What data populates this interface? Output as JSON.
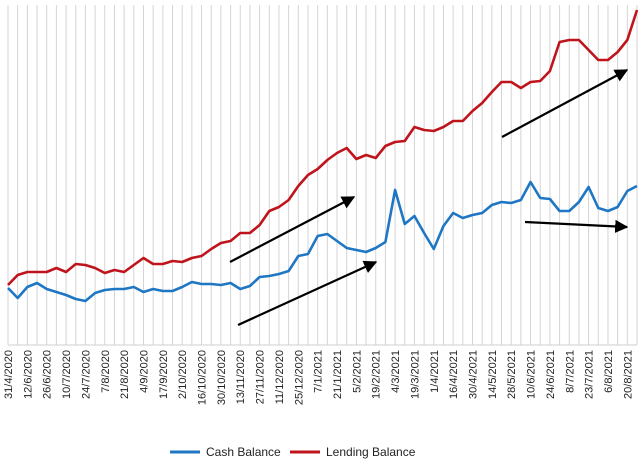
{
  "chart_data": {
    "type": "line",
    "categories": [
      "31/4/2020",
      null,
      "12/6/2020",
      null,
      "26/6/2020",
      null,
      "10/7/2020",
      null,
      "24/7/2020",
      null,
      "7/8/2020",
      null,
      "21/8/2020",
      null,
      "4/9/2020",
      null,
      "17/9/2020",
      null,
      "2/10/2020",
      null,
      "16/10/2020",
      null,
      "30/10/2020",
      null,
      "13/11/2020",
      null,
      "27/11/2020",
      null,
      "11/12/2020",
      null,
      "25/12/2020",
      null,
      "7/1/2021",
      null,
      "21/1/2021",
      null,
      "5/2/2021",
      null,
      "19/2/2021",
      null,
      "4/3/2021",
      null,
      "19/3/2021",
      null,
      "1/4/2021",
      null,
      "16/4/2021",
      null,
      "30/4/2021",
      null,
      "14/5/2021",
      null,
      "28/5/2021",
      null,
      "10/6/2021",
      null,
      "24/6/2021",
      null,
      "8/7/2021",
      null,
      "23/7/2021",
      null,
      "6/8/2021",
      null,
      "20/8/2021",
      null
    ],
    "series": [
      {
        "name": "Cash Balance",
        "color": "#1f77c4",
        "values": [
          57,
          47,
          58,
          62,
          56,
          53,
          50,
          46,
          44,
          52,
          55,
          56,
          56,
          58,
          53,
          56,
          54,
          54,
          58,
          63,
          61,
          61,
          60,
          62,
          56,
          59,
          68,
          69,
          71,
          74,
          89,
          91,
          109,
          111,
          104,
          97,
          95,
          93,
          97,
          103,
          155,
          121,
          129,
          112,
          96,
          119,
          132,
          127,
          130,
          132,
          140,
          143,
          142,
          145,
          163,
          147,
          146,
          134,
          134,
          143,
          158,
          137,
          134,
          138,
          154,
          159
        ]
      },
      {
        "name": "Lending Balance",
        "color": "#c0141c",
        "values": [
          60,
          70,
          73,
          73,
          73,
          77,
          73,
          81,
          80,
          77,
          72,
          75,
          73,
          80,
          87,
          81,
          81,
          84,
          83,
          87,
          89,
          96,
          102,
          104,
          112,
          112,
          120,
          134,
          138,
          145,
          159,
          170,
          176,
          185,
          192,
          197,
          186,
          190,
          187,
          199,
          203,
          204,
          218,
          215,
          214,
          218,
          224,
          224,
          234,
          242,
          253,
          263,
          263,
          257,
          263,
          264,
          274,
          303,
          305,
          305,
          295,
          285,
          285,
          293,
          305,
          335
        ]
      }
    ],
    "ylim": [
      0,
      340
    ],
    "grid": true
  }
}
